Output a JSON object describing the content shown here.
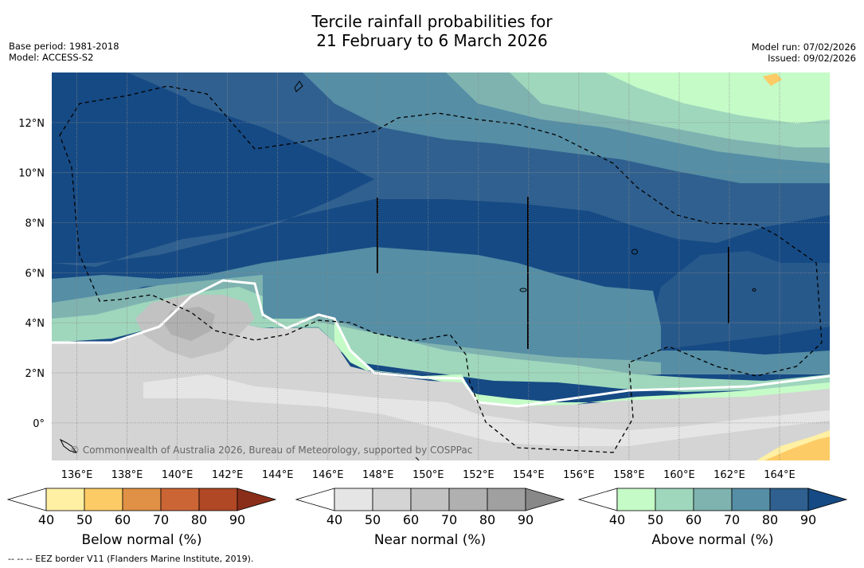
{
  "header": {
    "title_line1": "Tercile rainfall probabilities for",
    "title_line2": "21 February to 6 March 2026",
    "base_period": "Base period: 1981-2018",
    "model": "Model: ACCESS-S2",
    "model_run": "Model run: 07/02/2026",
    "issued": "Issued: 09/02/2026"
  },
  "chart_data": {
    "type": "heatmap",
    "subtype": "tercile probability map",
    "x_axis": {
      "unit": "degrees longitude",
      "range": [
        135,
        166
      ],
      "ticks": [
        136,
        138,
        140,
        142,
        144,
        146,
        148,
        150,
        152,
        154,
        156,
        158,
        160,
        162,
        164
      ],
      "tick_labels": [
        "136°E",
        "138°E",
        "140°E",
        "142°E",
        "144°E",
        "146°E",
        "148°E",
        "150°E",
        "152°E",
        "154°E",
        "156°E",
        "158°E",
        "160°E",
        "162°E",
        "164°E"
      ]
    },
    "y_axis": {
      "unit": "degrees latitude",
      "range": [
        -1.5,
        14
      ],
      "ticks": [
        0,
        2,
        4,
        6,
        8,
        10,
        12
      ],
      "tick_labels": [
        "0°",
        "2°N",
        "4°N",
        "6°N",
        "8°N",
        "10°N",
        "12°N"
      ]
    },
    "grid": true,
    "colorbars": [
      {
        "name": "Below normal (%)",
        "ticks": [
          40,
          50,
          60,
          70,
          80,
          90
        ],
        "colors": [
          "#ffffff",
          "#fff0a3",
          "#fdcb66",
          "#e09146",
          "#cc6535",
          "#b04826",
          "#8a2e1a"
        ]
      },
      {
        "name": "Near normal (%)",
        "ticks": [
          40,
          50,
          60,
          70,
          80,
          90
        ],
        "colors": [
          "#ffffff",
          "#e5e5e5",
          "#d4d4d4",
          "#c2c2c2",
          "#b0b0b0",
          "#a0a0a0",
          "#888888"
        ]
      },
      {
        "name": "Above normal (%)",
        "ticks": [
          40,
          50,
          60,
          70,
          80,
          90
        ],
        "colors": [
          "#ffffff",
          "#c5fbc7",
          "#9fd7bd",
          "#7fb3b0",
          "#558ea5",
          "#30608f",
          "#164a84"
        ]
      }
    ],
    "annotations": {
      "copyright": "© Commonwealth of Australia 2026, Bureau of Meteorology, supported by COSPPac",
      "legend_eez": "--  --  -- EEZ border V11 (Flanders Marine Institute, 2019)."
    }
  }
}
